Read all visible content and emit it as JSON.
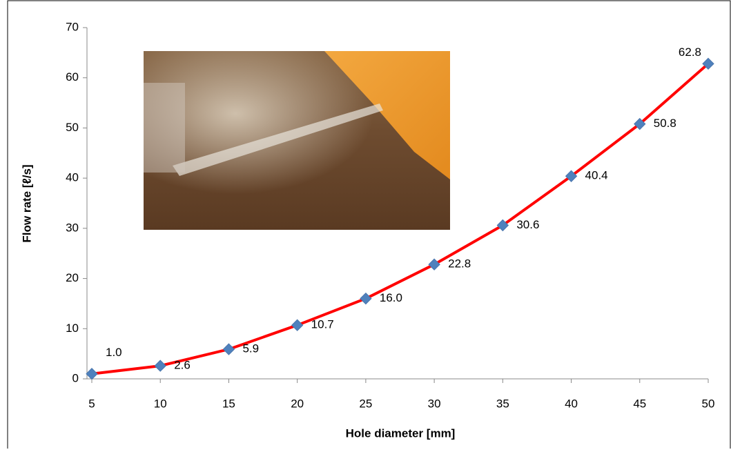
{
  "chart_data": {
    "type": "line",
    "x_label": "Hole diameter [mm]",
    "y_label": "Flow rate [ℓ/s]",
    "x": [
      5,
      10,
      15,
      20,
      25,
      30,
      35,
      40,
      45,
      50
    ],
    "series": [
      {
        "color": "#ff0000",
        "marker_color": "#4f81bd",
        "values": [
          1.0,
          2.6,
          5.9,
          10.7,
          16.0,
          22.8,
          30.6,
          40.4,
          50.8,
          62.8
        ],
        "value_labels": [
          "1.0",
          "2.6",
          "5.9",
          "10.7",
          "16.0",
          "22.8",
          "30.6",
          "40.4",
          "50.8",
          "62.8"
        ]
      }
    ],
    "xlim": [
      5,
      50
    ],
    "xticks": [
      5,
      10,
      15,
      20,
      25,
      30,
      35,
      40,
      45,
      50
    ],
    "ylim": [
      0,
      70
    ],
    "yticks": [
      0,
      10,
      20,
      30,
      40,
      50,
      60,
      70
    ],
    "grid": false
  }
}
